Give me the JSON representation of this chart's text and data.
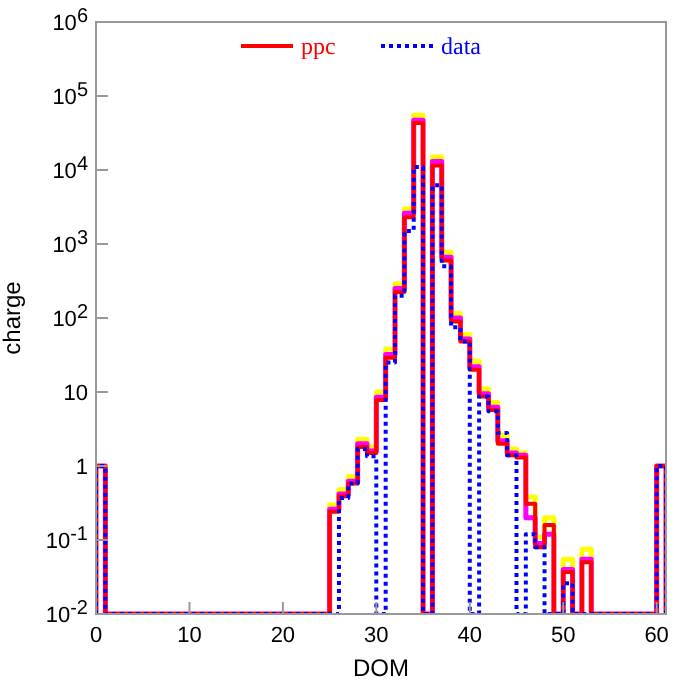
{
  "chart_data": {
    "type": "histogram",
    "xlabel": "DOM",
    "ylabel": "charge",
    "log": "y",
    "legend": "top",
    "grid": false,
    "bins": [
      0,
      1,
      2,
      3,
      4,
      5,
      6,
      7,
      8,
      9,
      10,
      11,
      12,
      13,
      14,
      15,
      16,
      17,
      18,
      19,
      20,
      21,
      22,
      23,
      24,
      25,
      26,
      27,
      28,
      29,
      30,
      31,
      32,
      33,
      34,
      35,
      36,
      37,
      38,
      39,
      40,
      41,
      42,
      43,
      44,
      45,
      46,
      47,
      48,
      49,
      50,
      51,
      52,
      53,
      54,
      55,
      56,
      57,
      58,
      59,
      60,
      61
    ],
    "xlim": [
      0,
      61
    ],
    "xticks": [
      0,
      10,
      20,
      30,
      40,
      50,
      60
    ],
    "ylim": [
      0.01,
      1000000
    ],
    "yticks": [
      {
        "value": 0.01,
        "label": "10$^{-2}$"
      },
      {
        "value": 0.1,
        "label": "10$^{-1}$"
      },
      1,
      10,
      {
        "value": 100,
        "label": "10$^{2}$"
      },
      {
        "value": 1000,
        "label": "10$^{3}$"
      },
      {
        "value": 10000,
        "label": "10$^{4}$"
      },
      {
        "value": 100000,
        "label": "10$^{5}$"
      },
      {
        "value": 1000000,
        "label": "10$^{6}$"
      }
    ],
    "series": [
      {
        "color": "#ffff00",
        "values": [
          1,
          null,
          null,
          null,
          null,
          null,
          null,
          null,
          null,
          null,
          null,
          null,
          null,
          null,
          null,
          null,
          null,
          null,
          null,
          null,
          null,
          null,
          null,
          null,
          null,
          0.3,
          0.48,
          0.72,
          2.3,
          1.8,
          10,
          38,
          290,
          3000,
          55000,
          null,
          15000,
          780,
          115,
          60,
          26,
          11,
          7.2,
          2.6,
          1.7,
          1.5,
          0.38,
          0.11,
          0.2,
          null,
          0.055,
          null,
          0.075,
          null,
          null,
          null,
          null,
          null,
          null,
          null,
          1
        ]
      },
      {
        "color": "#ff00ff",
        "values": [
          1,
          null,
          null,
          null,
          null,
          null,
          null,
          null,
          null,
          null,
          null,
          null,
          null,
          null,
          null,
          null,
          null,
          null,
          null,
          null,
          null,
          null,
          null,
          null,
          null,
          0.26,
          0.42,
          0.62,
          2.0,
          1.6,
          8.5,
          32,
          250,
          2600,
          47000,
          null,
          13000,
          660,
          100,
          52,
          22,
          9.5,
          6.2,
          2.2,
          1.5,
          1.4,
          0.2,
          0.09,
          0.12,
          null,
          0.04,
          null,
          0.055,
          null,
          null,
          null,
          null,
          null,
          null,
          null,
          1
        ]
      },
      {
        "name": "ppc",
        "color": "#ff0000",
        "line_style": "solid",
        "values": [
          1,
          null,
          null,
          null,
          null,
          null,
          null,
          null,
          null,
          null,
          null,
          null,
          null,
          null,
          null,
          null,
          null,
          null,
          null,
          null,
          null,
          null,
          null,
          null,
          null,
          0.24,
          0.39,
          0.58,
          1.8,
          1.5,
          7.8,
          29,
          224,
          2300,
          43000,
          null,
          11500,
          600,
          90,
          48,
          20,
          8.7,
          5.7,
          2.0,
          1.4,
          1.3,
          0.31,
          0.08,
          0.16,
          null,
          0.037,
          null,
          0.05,
          null,
          null,
          null,
          null,
          null,
          null,
          null,
          1
        ]
      },
      {
        "name": "data",
        "color": "#0000ff",
        "line_style": "dotted",
        "values": [
          1,
          null,
          null,
          null,
          null,
          null,
          null,
          null,
          null,
          null,
          null,
          null,
          null,
          null,
          null,
          null,
          null,
          null,
          null,
          null,
          null,
          null,
          null,
          null,
          null,
          null,
          0.37,
          0.58,
          1.7,
          1.35,
          null,
          25,
          200,
          1500,
          11000,
          null,
          6200,
          500,
          75,
          48,
          null,
          8.7,
          5.5,
          2.8,
          1.4,
          null,
          0.12,
          0.08,
          null,
          null,
          0.026,
          null,
          null,
          null,
          null,
          null,
          null,
          null,
          null,
          null,
          1
        ]
      }
    ]
  }
}
